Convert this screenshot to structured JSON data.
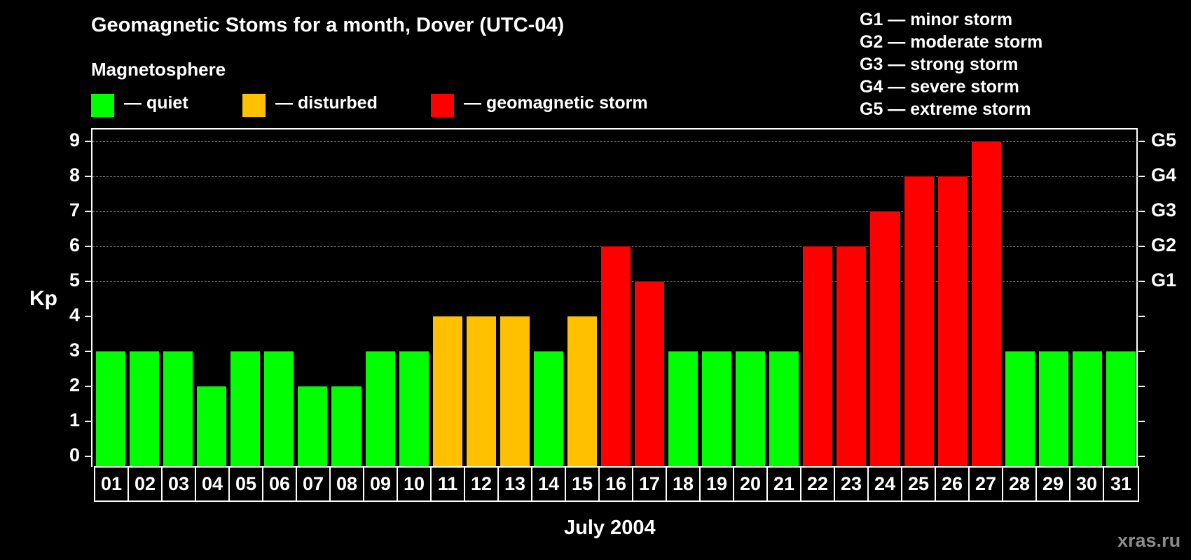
{
  "header": {
    "title": "Geomagnetic Stoms for a month, Dover (UTC-04)",
    "legend_title": "Magnetosphere",
    "legend": [
      {
        "label": "— quiet",
        "color": "#00ff00"
      },
      {
        "label": "— disturbed",
        "color": "#ffc000"
      },
      {
        "label": "— geomagnetic storm",
        "color": "#ff0000"
      }
    ],
    "storm_scale": [
      "G1 — minor storm",
      "G2 — moderate storm",
      "G3 — strong storm",
      "G4 — severe storm",
      "G5 — extreme storm"
    ]
  },
  "axes": {
    "ylabel": "Kp",
    "xlabel": "July 2004",
    "yticks": [
      "0",
      "1",
      "2",
      "3",
      "4",
      "5",
      "6",
      "7",
      "8",
      "9"
    ],
    "right_labels": [
      {
        "kp": 5,
        "label": "G1"
      },
      {
        "kp": 6,
        "label": "G2"
      },
      {
        "kp": 7,
        "label": "G3"
      },
      {
        "kp": 8,
        "label": "G4"
      },
      {
        "kp": 9,
        "label": "G5"
      }
    ]
  },
  "watermark": "xras.ru",
  "chart_data": {
    "type": "bar",
    "title": "Geomagnetic Stoms for a month, Dover (UTC-04)",
    "xlabel": "July 2004",
    "ylabel": "Kp",
    "ylim": [
      0,
      9
    ],
    "grid": "dashed horizontal at Kp 5-9",
    "categories": [
      "01",
      "02",
      "03",
      "04",
      "05",
      "06",
      "07",
      "08",
      "09",
      "10",
      "11",
      "12",
      "13",
      "14",
      "15",
      "16",
      "17",
      "18",
      "19",
      "20",
      "21",
      "22",
      "23",
      "24",
      "25",
      "26",
      "27",
      "28",
      "29",
      "30",
      "31"
    ],
    "values": [
      3,
      3,
      3,
      2,
      3,
      3,
      2,
      2,
      3,
      3,
      4,
      4,
      4,
      3,
      4,
      6,
      5,
      3,
      3,
      3,
      3,
      6,
      6,
      7,
      8,
      8,
      9,
      3,
      3,
      3,
      3
    ],
    "status": [
      "quiet",
      "quiet",
      "quiet",
      "quiet",
      "quiet",
      "quiet",
      "quiet",
      "quiet",
      "quiet",
      "quiet",
      "disturbed",
      "disturbed",
      "disturbed",
      "quiet",
      "disturbed",
      "storm",
      "storm",
      "quiet",
      "quiet",
      "quiet",
      "quiet",
      "storm",
      "storm",
      "storm",
      "storm",
      "storm",
      "storm",
      "quiet",
      "quiet",
      "quiet",
      "quiet"
    ],
    "colors": {
      "quiet": "#00ff00",
      "disturbed": "#ffc000",
      "storm": "#ff0000"
    },
    "legend": [
      "quiet",
      "disturbed",
      "geomagnetic storm"
    ],
    "secondary_axis": {
      "5": "G1",
      "6": "G2",
      "7": "G3",
      "8": "G4",
      "9": "G5"
    }
  }
}
